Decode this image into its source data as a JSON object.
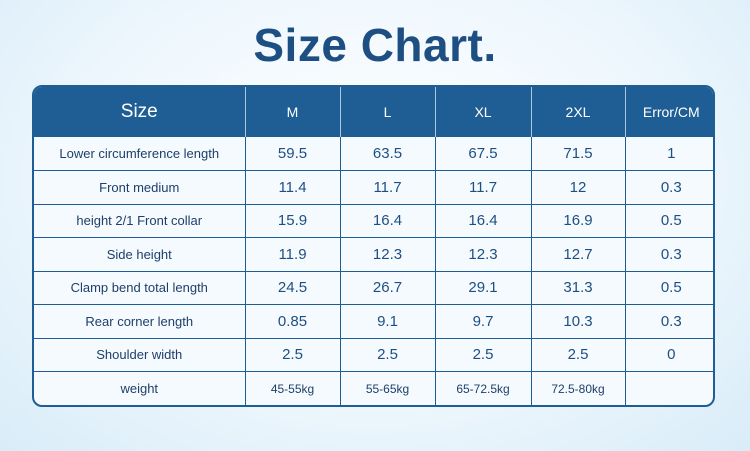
{
  "title": "Size Chart.",
  "header": {
    "size_label": "Size",
    "columns": [
      "M",
      "L",
      "XL",
      "2XL",
      "Error/CM"
    ]
  },
  "rows": [
    {
      "label": "Lower circumference  length",
      "values": [
        "59.5",
        "63.5",
        "67.5",
        "71.5",
        "1"
      ]
    },
    {
      "label": "Front medium",
      "values": [
        "11.4",
        "11.7",
        "11.7",
        "12",
        "0.3"
      ]
    },
    {
      "label": "height 2/1 Front collar",
      "values": [
        "15.9",
        "16.4",
        "16.4",
        "16.9",
        "0.5"
      ]
    },
    {
      "label": "Side height",
      "values": [
        "11.9",
        "12.3",
        "12.3",
        "12.7",
        "0.3"
      ]
    },
    {
      "label": "Clamp bend total length",
      "values": [
        "24.5",
        "26.7",
        "29.1",
        "31.3",
        "0.5"
      ]
    },
    {
      "label": "Rear corner length",
      "values": [
        "0.85",
        "9.1",
        "9.7",
        "10.3",
        "0.3"
      ]
    },
    {
      "label": "Shoulder width",
      "values": [
        "2.5",
        "2.5",
        "2.5",
        "2.5",
        "0"
      ]
    },
    {
      "label": "weight",
      "values": [
        "45-55kg",
        "55-65kg",
        "65-72.5kg",
        "72.5-80kg",
        ""
      ]
    }
  ],
  "colors": {
    "header_bg": "#1f5e94",
    "title_text": "#1e4f82",
    "border": "#1f5e94"
  }
}
